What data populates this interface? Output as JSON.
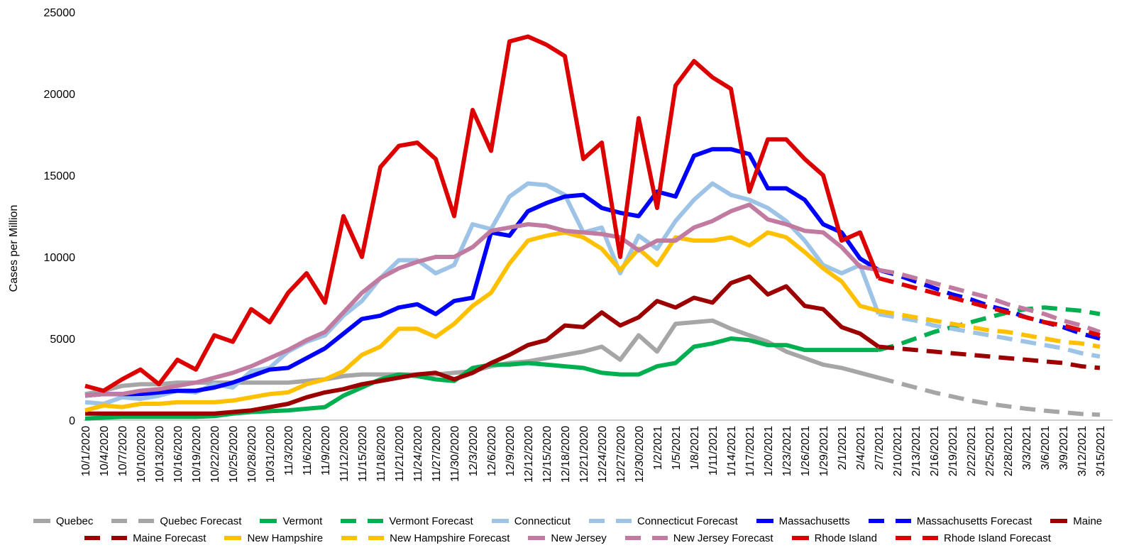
{
  "chart_data": {
    "type": "line",
    "y_label": "Cases per Million",
    "categories": [
      "10/1/2020",
      "10/4/2020",
      "10/7/2020",
      "10/10/2020",
      "10/13/2020",
      "10/16/2020",
      "10/19/2020",
      "10/22/2020",
      "10/25/2020",
      "10/28/2020",
      "10/31/2020",
      "11/3/2020",
      "11/6/2020",
      "11/9/2020",
      "11/12/2020",
      "11/15/2020",
      "11/18/2020",
      "11/21/2020",
      "11/24/2020",
      "11/27/2020",
      "11/30/2020",
      "12/3/2020",
      "12/6/2020",
      "12/9/2020",
      "12/12/2020",
      "12/15/2020",
      "12/18/2020",
      "12/21/2020",
      "12/24/2020",
      "12/27/2020",
      "12/30/2020",
      "1/2/2021",
      "1/5/2021",
      "1/8/2021",
      "1/11/2021",
      "1/14/2021",
      "1/17/2021",
      "1/20/2021",
      "1/23/2021",
      "1/26/2021",
      "1/29/2021",
      "2/1/2021",
      "2/4/2021",
      "2/7/2021",
      "2/10/2021",
      "2/13/2021",
      "2/16/2021",
      "2/19/2021",
      "2/22/2021",
      "2/25/2021",
      "2/28/2021",
      "3/3/2021",
      "3/6/2021",
      "3/9/2021",
      "3/12/2021",
      "3/15/2021"
    ],
    "ylim": [
      0,
      25000
    ],
    "yticks": [
      0,
      5000,
      10000,
      15000,
      20000,
      25000
    ],
    "series": [
      {
        "name": "Quebec",
        "color": "#a6a6a6",
        "style": "solid",
        "values": [
          1600,
          1800,
          2100,
          2200,
          2200,
          2300,
          2300,
          2300,
          2300,
          2300,
          2300,
          2300,
          2400,
          2500,
          2700,
          2800,
          2800,
          2800,
          2800,
          2800,
          2900,
          3000,
          3300,
          3500,
          3600,
          3800,
          4000,
          4200,
          4500,
          3700,
          5200,
          4200,
          5900,
          6000,
          6100,
          5600,
          5200,
          4800,
          4200,
          3800,
          3400,
          3200,
          2900,
          2600,
          null,
          null,
          null,
          null,
          null,
          null,
          null,
          null,
          null,
          null,
          null,
          null
        ]
      },
      {
        "name": "Quebec Forecast",
        "color": "#a6a6a6",
        "style": "dashed",
        "values": [
          null,
          null,
          null,
          null,
          null,
          null,
          null,
          null,
          null,
          null,
          null,
          null,
          null,
          null,
          null,
          null,
          null,
          null,
          null,
          null,
          null,
          null,
          null,
          null,
          null,
          null,
          null,
          null,
          null,
          null,
          null,
          null,
          null,
          null,
          null,
          null,
          null,
          null,
          null,
          null,
          null,
          null,
          null,
          2600,
          2300,
          2000,
          1700,
          1450,
          1200,
          1000,
          850,
          700,
          580,
          480,
          380,
          330
        ]
      },
      {
        "name": "Vermont",
        "color": "#00b050",
        "style": "solid",
        "values": [
          100,
          150,
          200,
          200,
          200,
          200,
          200,
          250,
          400,
          500,
          550,
          600,
          700,
          800,
          1500,
          2000,
          2500,
          2800,
          2700,
          2500,
          2400,
          3200,
          3400,
          3400,
          3500,
          3400,
          3300,
          3200,
          2900,
          2800,
          2800,
          3300,
          3500,
          4500,
          4700,
          5000,
          4900,
          4600,
          4600,
          4300,
          4300,
          4300,
          4300,
          4300,
          null,
          null,
          null,
          null,
          null,
          null,
          null,
          null,
          null,
          null,
          null,
          null
        ]
      },
      {
        "name": "Vermont Forecast",
        "color": "#00b050",
        "style": "dashed",
        "values": [
          null,
          null,
          null,
          null,
          null,
          null,
          null,
          null,
          null,
          null,
          null,
          null,
          null,
          null,
          null,
          null,
          null,
          null,
          null,
          null,
          null,
          null,
          null,
          null,
          null,
          null,
          null,
          null,
          null,
          null,
          null,
          null,
          null,
          null,
          null,
          null,
          null,
          null,
          null,
          null,
          null,
          null,
          null,
          4300,
          4600,
          5000,
          5400,
          5700,
          6000,
          6300,
          6600,
          6800,
          6900,
          6800,
          6700,
          6500
        ]
      },
      {
        "name": "Connecticut",
        "color": "#9dc3e6",
        "style": "solid",
        "values": [
          1100,
          1000,
          1400,
          1300,
          1500,
          1800,
          1700,
          2200,
          2000,
          3000,
          3200,
          4200,
          4800,
          5200,
          6400,
          7300,
          8700,
          9800,
          9800,
          9000,
          9500,
          12000,
          11700,
          13700,
          14500,
          14400,
          13800,
          11500,
          11800,
          9000,
          11300,
          10500,
          12200,
          13500,
          14500,
          13800,
          13500,
          13000,
          12200,
          11000,
          9500,
          9000,
          9500,
          6500,
          null,
          null,
          null,
          null,
          null,
          null,
          null,
          null,
          null,
          null,
          null,
          null
        ]
      },
      {
        "name": "Connecticut Forecast",
        "color": "#9dc3e6",
        "style": "dashed",
        "values": [
          null,
          null,
          null,
          null,
          null,
          null,
          null,
          null,
          null,
          null,
          null,
          null,
          null,
          null,
          null,
          null,
          null,
          null,
          null,
          null,
          null,
          null,
          null,
          null,
          null,
          null,
          null,
          null,
          null,
          null,
          null,
          null,
          null,
          null,
          null,
          null,
          null,
          null,
          null,
          null,
          null,
          null,
          null,
          6500,
          6300,
          6100,
          5800,
          5600,
          5400,
          5200,
          5000,
          4800,
          4600,
          4400,
          4100,
          3900
        ]
      },
      {
        "name": "Massachusetts",
        "color": "#0000ff",
        "style": "solid",
        "values": [
          1500,
          1600,
          1600,
          1600,
          1700,
          1800,
          1800,
          2000,
          2300,
          2700,
          3100,
          3200,
          3800,
          4400,
          5300,
          6200,
          6400,
          6900,
          7100,
          6500,
          7300,
          7500,
          11500,
          11300,
          12800,
          13300,
          13700,
          13800,
          13000,
          12700,
          12500,
          14000,
          13700,
          16200,
          16600,
          16600,
          16300,
          14200,
          14200,
          13500,
          12000,
          11500,
          9900,
          9200,
          null,
          null,
          null,
          null,
          null,
          null,
          null,
          null,
          null,
          null,
          null,
          null
        ]
      },
      {
        "name": "Massachusetts Forecast",
        "color": "#0000ff",
        "style": "dashed",
        "values": [
          null,
          null,
          null,
          null,
          null,
          null,
          null,
          null,
          null,
          null,
          null,
          null,
          null,
          null,
          null,
          null,
          null,
          null,
          null,
          null,
          null,
          null,
          null,
          null,
          null,
          null,
          null,
          null,
          null,
          null,
          null,
          null,
          null,
          null,
          null,
          null,
          null,
          null,
          null,
          null,
          null,
          null,
          null,
          9200,
          8900,
          8500,
          8100,
          7700,
          7400,
          7000,
          6700,
          6300,
          6000,
          5700,
          5300,
          5000
        ]
      },
      {
        "name": "Maine",
        "color": "#9c0000",
        "style": "solid",
        "values": [
          400,
          400,
          400,
          400,
          400,
          400,
          400,
          400,
          500,
          600,
          800,
          1000,
          1400,
          1700,
          1900,
          2200,
          2400,
          2600,
          2800,
          2900,
          2500,
          2900,
          3500,
          4000,
          4600,
          4900,
          5800,
          5700,
          6600,
          5800,
          6300,
          7300,
          6900,
          7500,
          7200,
          8400,
          8800,
          7700,
          8200,
          7000,
          6800,
          5700,
          5300,
          4500,
          null,
          null,
          null,
          null,
          null,
          null,
          null,
          null,
          null,
          null,
          null,
          null
        ]
      },
      {
        "name": "Maine Forecast",
        "color": "#9c0000",
        "style": "dashed",
        "values": [
          null,
          null,
          null,
          null,
          null,
          null,
          null,
          null,
          null,
          null,
          null,
          null,
          null,
          null,
          null,
          null,
          null,
          null,
          null,
          null,
          null,
          null,
          null,
          null,
          null,
          null,
          null,
          null,
          null,
          null,
          null,
          null,
          null,
          null,
          null,
          null,
          null,
          null,
          null,
          null,
          null,
          null,
          null,
          4500,
          4400,
          4300,
          4200,
          4100,
          4000,
          3900,
          3800,
          3700,
          3600,
          3500,
          3300,
          3200
        ]
      },
      {
        "name": "New Hampshire",
        "color": "#ffc000",
        "style": "solid",
        "values": [
          600,
          900,
          800,
          1000,
          1000,
          1100,
          1100,
          1100,
          1200,
          1400,
          1600,
          1700,
          2200,
          2500,
          3000,
          4000,
          4500,
          5600,
          5600,
          5100,
          5900,
          7000,
          7800,
          9600,
          11000,
          11300,
          11500,
          11200,
          10500,
          9200,
          10500,
          9500,
          11200,
          11000,
          11000,
          11200,
          10700,
          11500,
          11200,
          10300,
          9300,
          8500,
          7000,
          6700,
          null,
          null,
          null,
          null,
          null,
          null,
          null,
          null,
          null,
          null,
          null,
          null
        ]
      },
      {
        "name": "New Hampshire Forecast",
        "color": "#ffc000",
        "style": "dashed",
        "values": [
          null,
          null,
          null,
          null,
          null,
          null,
          null,
          null,
          null,
          null,
          null,
          null,
          null,
          null,
          null,
          null,
          null,
          null,
          null,
          null,
          null,
          null,
          null,
          null,
          null,
          null,
          null,
          null,
          null,
          null,
          null,
          null,
          null,
          null,
          null,
          null,
          null,
          null,
          null,
          null,
          null,
          null,
          null,
          6700,
          6500,
          6300,
          6100,
          5900,
          5700,
          5500,
          5400,
          5200,
          5000,
          4800,
          4700,
          4500
        ]
      },
      {
        "name": "New Jersey",
        "color": "#c27ba0",
        "style": "solid",
        "values": [
          1500,
          1600,
          1600,
          1800,
          1900,
          2100,
          2300,
          2600,
          2900,
          3300,
          3800,
          4300,
          4900,
          5400,
          6600,
          7800,
          8700,
          9300,
          9700,
          10000,
          10000,
          10600,
          11600,
          11800,
          12000,
          11900,
          11600,
          11500,
          11400,
          11200,
          10400,
          11000,
          11000,
          11800,
          12200,
          12800,
          13200,
          12300,
          12000,
          11600,
          11500,
          10600,
          9400,
          9200,
          null,
          null,
          null,
          null,
          null,
          null,
          null,
          null,
          null,
          null,
          null,
          null
        ]
      },
      {
        "name": "New Jersey Forecast",
        "color": "#c27ba0",
        "style": "dashed",
        "values": [
          null,
          null,
          null,
          null,
          null,
          null,
          null,
          null,
          null,
          null,
          null,
          null,
          null,
          null,
          null,
          null,
          null,
          null,
          null,
          null,
          null,
          null,
          null,
          null,
          null,
          null,
          null,
          null,
          null,
          null,
          null,
          null,
          null,
          null,
          null,
          null,
          null,
          null,
          null,
          null,
          null,
          null,
          null,
          9200,
          9000,
          8700,
          8400,
          8100,
          7800,
          7500,
          7100,
          6800,
          6500,
          6100,
          5800,
          5400
        ]
      },
      {
        "name": "Rhode Island",
        "color": "#dd0000",
        "style": "solid",
        "values": [
          2100,
          1800,
          2500,
          3100,
          2200,
          3700,
          3100,
          5200,
          4800,
          6800,
          6000,
          7800,
          9000,
          7200,
          12500,
          10000,
          15500,
          16800,
          17000,
          16000,
          12500,
          19000,
          16500,
          23200,
          23500,
          23000,
          22300,
          16000,
          17000,
          10000,
          18500,
          13000,
          20500,
          22000,
          21000,
          20300,
          14000,
          17200,
          17200,
          16000,
          15000,
          11000,
          11500,
          8700,
          null,
          null,
          null,
          null,
          null,
          null,
          null,
          null,
          null,
          null,
          null,
          null
        ]
      },
      {
        "name": "Rhode Island Forecast",
        "color": "#dd0000",
        "style": "dashed",
        "values": [
          null,
          null,
          null,
          null,
          null,
          null,
          null,
          null,
          null,
          null,
          null,
          null,
          null,
          null,
          null,
          null,
          null,
          null,
          null,
          null,
          null,
          null,
          null,
          null,
          null,
          null,
          null,
          null,
          null,
          null,
          null,
          null,
          null,
          null,
          null,
          null,
          null,
          null,
          null,
          null,
          null,
          null,
          null,
          8700,
          8400,
          8100,
          7800,
          7500,
          7200,
          6900,
          6600,
          6300,
          6000,
          5800,
          5500,
          5200
        ]
      }
    ]
  }
}
